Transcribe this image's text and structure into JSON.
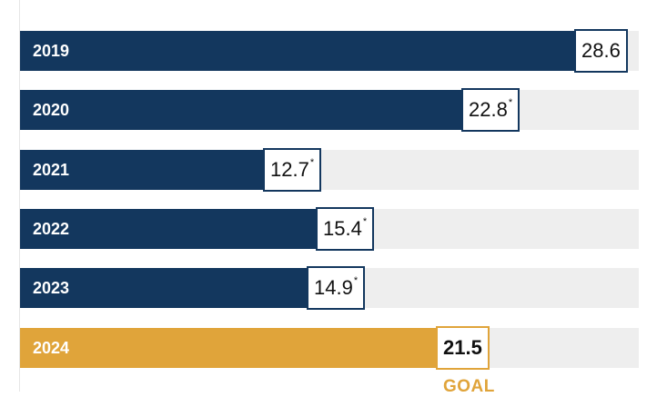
{
  "colors": {
    "bar": "#13375e",
    "goal": "#e0a43a",
    "track": "#eeeeee"
  },
  "chart_data": {
    "type": "bar",
    "orientation": "horizontal",
    "title": "",
    "xlabel": "",
    "ylabel": "",
    "xlim": [
      0,
      31.6
    ],
    "grid": false,
    "legend": "none",
    "categories": [
      "2019",
      "2020",
      "2021",
      "2022",
      "2023",
      "2024"
    ],
    "values": [
      28.6,
      22.8,
      12.7,
      15.4,
      14.9,
      21.5
    ],
    "value_labels": [
      "28.6",
      "22.8",
      "12.7",
      "15.4",
      "14.9",
      "21.5"
    ],
    "footnote_marks": [
      "",
      "*",
      "*",
      "*",
      "*",
      ""
    ],
    "highlight": [
      false,
      false,
      false,
      false,
      false,
      true
    ],
    "annotation": "GOAL"
  }
}
